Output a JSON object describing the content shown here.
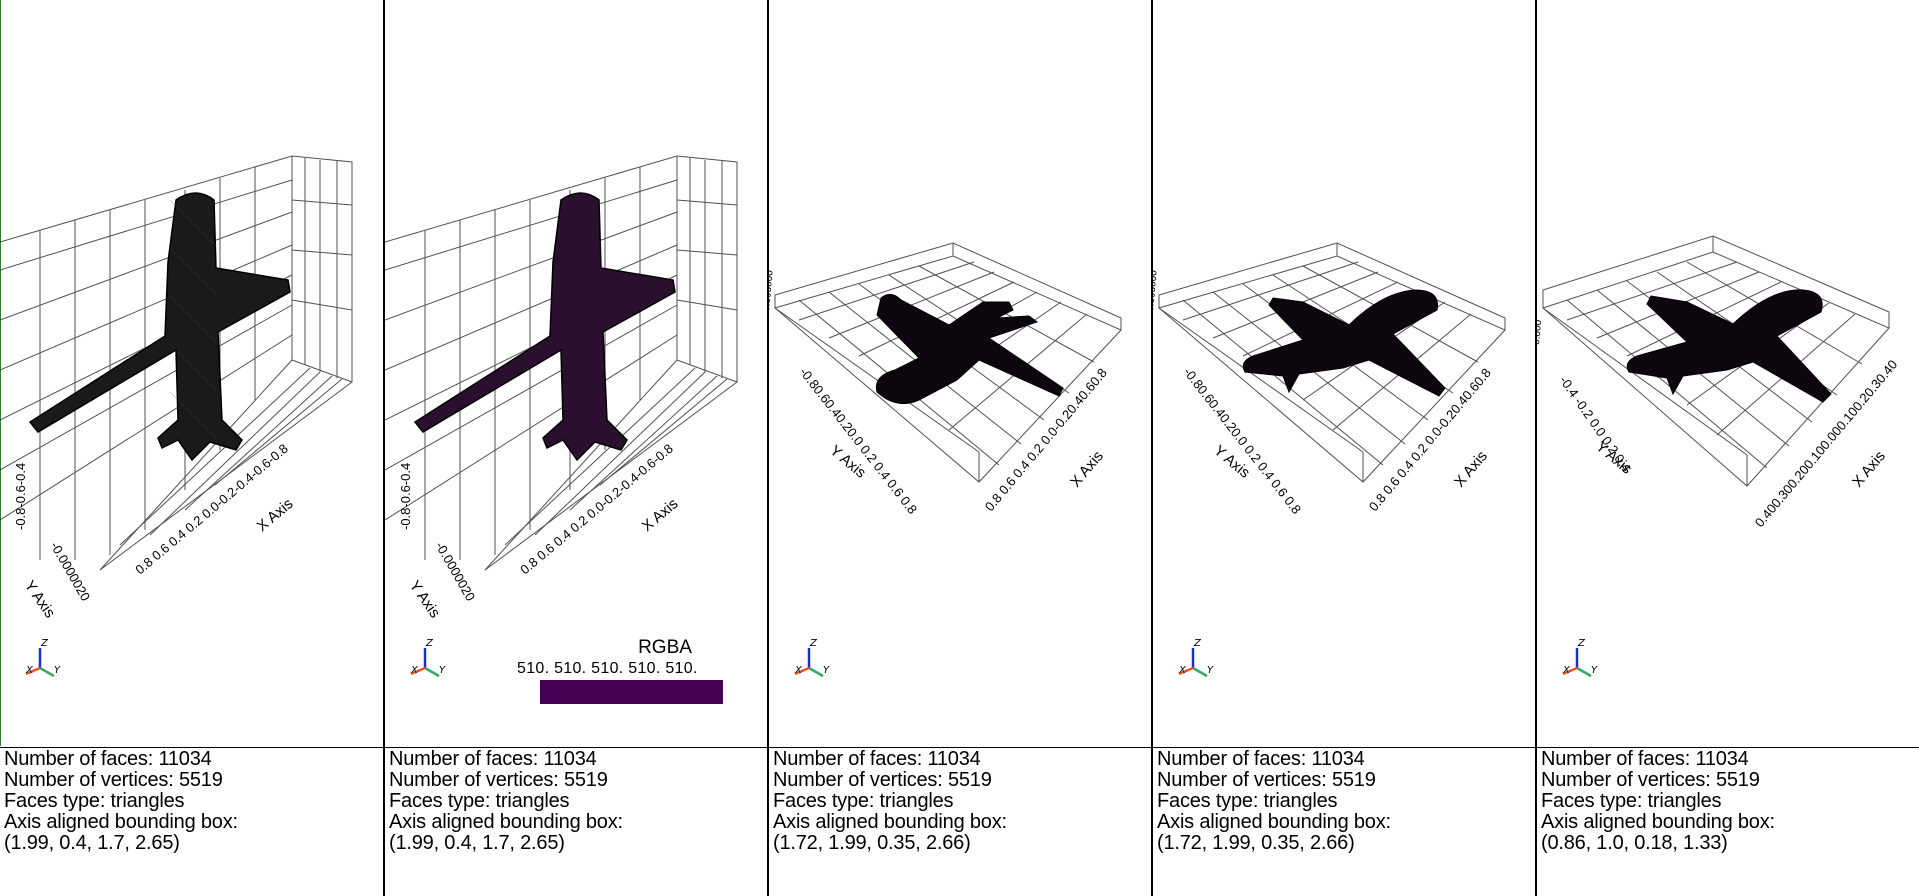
{
  "panels": [
    {
      "info": [
        "Number of faces: 11034",
        "Number of vertices: 5519",
        "Faces type: triangles",
        "Axis aligned bounding box:",
        "(1.99, 0.4, 1.7, 2.65)"
      ],
      "x_axis_title": "X Axis",
      "y_axis_title": "Y Axis",
      "x_ticks": "0.8 0.6 0.4 0.2 0.0-0.2-0.4-0.6-0.8",
      "y_ticks": "-0.8-0.6-0.4",
      "z_ticks": "-0.0000020",
      "fill": "#1a1a1a",
      "wireframe": true
    },
    {
      "info": [
        "Number of faces: 11034",
        "Number of vertices: 5519",
        "Faces type: triangles",
        "Axis aligned bounding box:",
        "(1.99, 0.4, 1.7, 2.65)"
      ],
      "x_axis_title": "X Axis",
      "y_axis_title": "Y Axis",
      "x_ticks": "0.8 0.6 0.4 0.2 0.0-0.2-0.4-0.6-0.8",
      "y_ticks": "-0.8-0.6-0.4",
      "z_ticks": "-0.0000020",
      "fill": "#2a0f2e",
      "wireframe": false,
      "colorbar": {
        "title": "RGBA",
        "ticks": "510.  510.  510.  510.  510.",
        "color": "#440154"
      }
    },
    {
      "info": [
        "Number of faces: 11034",
        "Number of vertices: 5519",
        "Faces type: triangles",
        "Axis aligned bounding box:",
        "(1.72, 1.99, 0.35, 2.66)"
      ],
      "x_axis_title": "X Axis",
      "y_axis_title": "Y Axis",
      "x_ticks": "0.8 0.6 0.4 0.2 0.0-0.20.40.60.8",
      "y_ticks": "-0.80.60.40.20.0 0.2 0.4 0.6 0.8",
      "fill": "#0d060f"
    },
    {
      "info": [
        "Number of faces: 11034",
        "Number of vertices: 5519",
        "Faces type: triangles",
        "Axis aligned bounding box:",
        "(1.72, 1.99, 0.35, 2.66)"
      ],
      "x_axis_title": "X Axis",
      "y_axis_title": "Y Axis",
      "x_ticks": "0.8 0.6 0.4 0.2 0.0-0.20.40.60.8",
      "y_ticks": "-0.80.60.40.20.0 0.2 0.4 0.6 0.8",
      "fill": "#0d060f"
    },
    {
      "info": [
        "Number of faces: 11034",
        "Number of vertices: 5519",
        "Faces type: triangles",
        "Axis aligned bounding box:",
        "(0.86, 1.0, 0.18, 1.33)"
      ],
      "x_axis_title": "X Axis",
      "y_axis_title": "Y Axis",
      "x_ticks": "0.400.300.200.100.000.100.20.30.40",
      "y_ticks": "-0.4  -0.2  0.0  0.2  0.4",
      "fill": "#0d060f"
    }
  ],
  "triad": {
    "x": "X",
    "y": "Y",
    "z": "Z",
    "x_color": "#e8542c",
    "y_color": "#3aa56b",
    "z_color": "#1b2bd6"
  }
}
